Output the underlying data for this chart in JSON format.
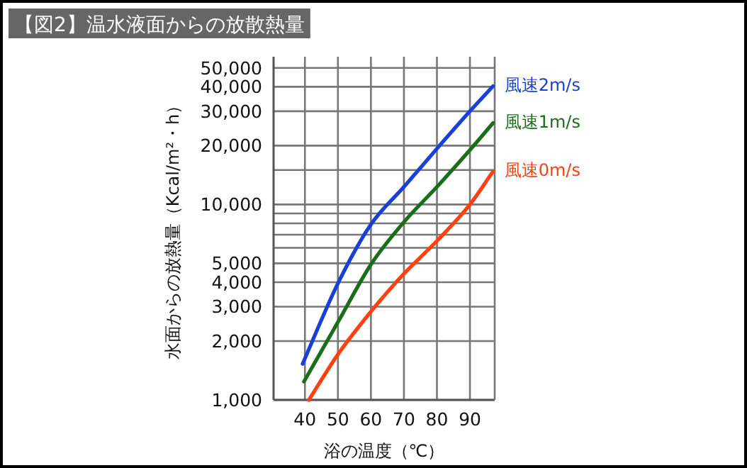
{
  "chart_data": {
    "type": "line",
    "title": "【図2】温水液面からの放散熱量",
    "xlabel": "浴の温度（℃）",
    "ylabel": "水面からの放熱量（Kcal/m²・h）",
    "log": "y",
    "grid": true,
    "marker": "none",
    "line_style": "solid",
    "xlim": [
      30.5,
      97.5
    ],
    "xticks": [
      40,
      50,
      60,
      70,
      80,
      90
    ],
    "ylim": [
      1000,
      57000
    ],
    "yticks": [
      {
        "value": 1000,
        "label": "1,000"
      },
      {
        "value": 2000,
        "label": "2,000"
      },
      {
        "value": 3000,
        "label": "3,000"
      },
      {
        "value": 4000,
        "label": "4,000"
      },
      {
        "value": 5000,
        "label": "5,000"
      },
      {
        "value": 6000,
        "label": null
      },
      {
        "value": 7000,
        "label": null
      },
      {
        "value": 8000,
        "label": null
      },
      {
        "value": 9000,
        "label": null
      },
      {
        "value": 10000,
        "label": "10,000"
      },
      {
        "value": 15000,
        "label": null
      },
      {
        "value": 20000,
        "label": "20,000"
      },
      {
        "value": 30000,
        "label": "30,000"
      },
      {
        "value": 40000,
        "label": "40,000"
      },
      {
        "value": 50000,
        "label": "50,000"
      }
    ],
    "series": [
      {
        "name": "風速2m/s",
        "color": "#1a3fd6",
        "x": [
          39.3,
          50,
          60,
          70,
          80,
          90,
          97
        ],
        "values": [
          1530,
          3950,
          7900,
          12300,
          19300,
          30000,
          40300
        ]
      },
      {
        "name": "風速1m/s",
        "color": "#1a6e1a",
        "x": [
          39.7,
          50,
          60,
          70,
          80,
          90,
          97
        ],
        "values": [
          1240,
          2500,
          4930,
          8130,
          12300,
          19000,
          26100
        ]
      },
      {
        "name": "風速0m/s",
        "color": "#ff4010",
        "x": [
          41.2,
          50,
          60,
          70,
          80,
          90,
          97
        ],
        "values": [
          1000,
          1710,
          2830,
          4420,
          6510,
          10000,
          14750
        ]
      }
    ]
  }
}
